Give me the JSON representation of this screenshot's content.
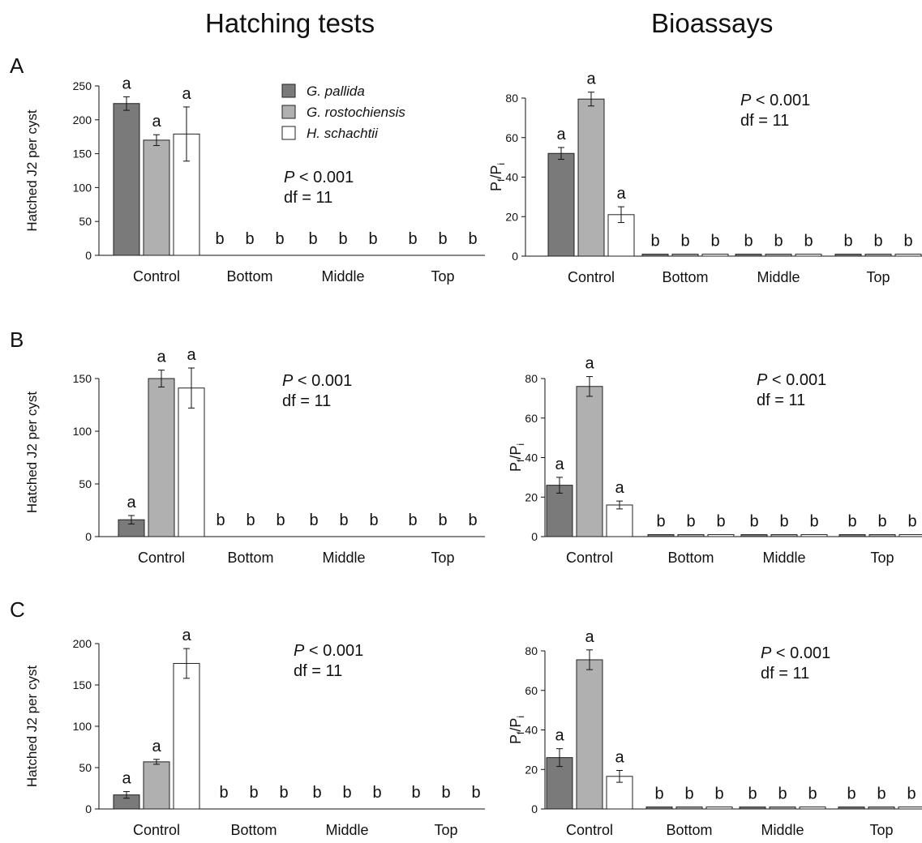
{
  "column_titles": [
    "Hatching tests",
    "Bioassays"
  ],
  "row_labels": [
    "A",
    "B",
    "C"
  ],
  "colors": {
    "G. pallida": "#7a7a7a",
    "G. rostochiensis": "#b0b0b0",
    "H. schachtii": "#ffffff",
    "stroke": "#222222"
  },
  "chart_data": [
    {
      "type": "bar",
      "panel": "A",
      "column": "Hatching tests",
      "ylabel": "Hatched J2 per cyst",
      "ylim": [
        0,
        250
      ],
      "yticks": [
        0,
        50,
        100,
        150,
        200,
        250
      ],
      "categories": [
        "Control",
        "Bottom",
        "Middle",
        "Top"
      ],
      "series": [
        {
          "name": "G. pallida",
          "values": [
            224,
            0,
            0,
            0
          ],
          "errors": [
            10,
            0,
            0,
            0
          ]
        },
        {
          "name": "G. rostochiensis",
          "values": [
            170,
            0,
            0,
            0
          ],
          "errors": [
            8,
            0,
            0,
            0
          ]
        },
        {
          "name": "H. schachtii",
          "values": [
            179,
            0,
            0,
            0
          ],
          "errors": [
            40,
            0,
            0,
            0
          ]
        }
      ],
      "letters": [
        [
          "a",
          "a",
          "a"
        ],
        [
          "b",
          "b",
          "b"
        ],
        [
          "b",
          "b",
          "b"
        ],
        [
          "b",
          "b",
          "b"
        ]
      ],
      "stats": {
        "p": "< 0.001",
        "df": "df = 11"
      },
      "legend": "top-center"
    },
    {
      "type": "bar",
      "panel": "A",
      "column": "Bioassays",
      "ylabel": "Pf/Pi",
      "ylim": [
        0,
        80
      ],
      "yticks": [
        0,
        20,
        40,
        60,
        80
      ],
      "categories": [
        "Control",
        "Bottom",
        "Middle",
        "Top"
      ],
      "series": [
        {
          "name": "G. pallida",
          "values": [
            52,
            1,
            1,
            1
          ],
          "errors": [
            3,
            0,
            0,
            0
          ]
        },
        {
          "name": "G. rostochiensis",
          "values": [
            79.5,
            1,
            1,
            1
          ],
          "errors": [
            3.5,
            0,
            0,
            0
          ]
        },
        {
          "name": "H. schachtii",
          "values": [
            21,
            1,
            1,
            1
          ],
          "errors": [
            4,
            0,
            0,
            0
          ]
        }
      ],
      "letters": [
        [
          "a",
          "a",
          "a"
        ],
        [
          "b",
          "b",
          "b"
        ],
        [
          "b",
          "b",
          "b"
        ],
        [
          "b",
          "b",
          "b"
        ]
      ],
      "stats": {
        "p": "< 0.001",
        "df": "df = 11"
      }
    },
    {
      "type": "bar",
      "panel": "B",
      "column": "Hatching tests",
      "ylabel": "Hatched J2 per cyst",
      "ylim": [
        0,
        160
      ],
      "yticks": [
        0,
        50,
        100,
        150
      ],
      "categories": [
        "Control",
        "Bottom",
        "Middle",
        "Top"
      ],
      "series": [
        {
          "name": "G. pallida",
          "values": [
            16,
            0,
            0,
            0
          ],
          "errors": [
            4,
            0,
            0,
            0
          ]
        },
        {
          "name": "G. rostochiensis",
          "values": [
            150,
            0,
            0,
            0
          ],
          "errors": [
            8,
            0,
            0,
            0
          ]
        },
        {
          "name": "H. schachtii",
          "values": [
            141,
            0,
            0,
            0
          ],
          "errors": [
            19,
            0,
            0,
            0
          ]
        }
      ],
      "letters": [
        [
          "a",
          "a",
          "a"
        ],
        [
          "b",
          "b",
          "b"
        ],
        [
          "b",
          "b",
          "b"
        ],
        [
          "b",
          "b",
          "b"
        ]
      ],
      "stats": {
        "p": "< 0.001",
        "df": "df = 11"
      }
    },
    {
      "type": "bar",
      "panel": "B",
      "column": "Bioassays",
      "ylabel": "Pf/Pi",
      "ylim": [
        0,
        80
      ],
      "yticks": [
        0,
        20,
        40,
        60,
        80
      ],
      "categories": [
        "Control",
        "Bottom",
        "Middle",
        "Top"
      ],
      "series": [
        {
          "name": "G. pallida",
          "values": [
            26,
            1,
            1,
            1
          ],
          "errors": [
            4,
            0,
            0,
            0
          ]
        },
        {
          "name": "G. rostochiensis",
          "values": [
            76,
            1,
            1,
            1
          ],
          "errors": [
            5,
            0,
            0,
            0
          ]
        },
        {
          "name": "H. schachtii",
          "values": [
            16,
            1,
            1,
            1
          ],
          "errors": [
            2,
            0,
            0,
            0
          ]
        }
      ],
      "letters": [
        [
          "a",
          "a",
          "a"
        ],
        [
          "b",
          "b",
          "b"
        ],
        [
          "b",
          "b",
          "b"
        ],
        [
          "b",
          "b",
          "b"
        ]
      ],
      "stats": {
        "p": "< 0.001",
        "df": "df = 11"
      }
    },
    {
      "type": "bar",
      "panel": "C",
      "column": "Hatching tests",
      "ylabel": "Hatched J2 per cyst",
      "ylim": [
        0,
        200
      ],
      "yticks": [
        0,
        50,
        100,
        150,
        200
      ],
      "categories": [
        "Control",
        "Bottom",
        "Middle",
        "Top"
      ],
      "series": [
        {
          "name": "G. pallida",
          "values": [
            17,
            0,
            0,
            0
          ],
          "errors": [
            4,
            0,
            0,
            0
          ]
        },
        {
          "name": "G. rostochiensis",
          "values": [
            57,
            0,
            0,
            0
          ],
          "errors": [
            3,
            0,
            0,
            0
          ]
        },
        {
          "name": "H. schachtii",
          "values": [
            176,
            0,
            0,
            0
          ],
          "errors": [
            18,
            0,
            0,
            0
          ]
        }
      ],
      "letters": [
        [
          "a",
          "a",
          "a"
        ],
        [
          "b",
          "b",
          "b"
        ],
        [
          "b",
          "b",
          "b"
        ],
        [
          "b",
          "b",
          "b"
        ]
      ],
      "stats": {
        "p": "< 0.001",
        "df": "df = 11"
      }
    },
    {
      "type": "bar",
      "panel": "C",
      "column": "Bioassays",
      "ylabel": "Pf/Pi",
      "ylim": [
        0,
        80
      ],
      "yticks": [
        0,
        20,
        40,
        60,
        80
      ],
      "categories": [
        "Control",
        "Bottom",
        "Middle",
        "Top"
      ],
      "series": [
        {
          "name": "G. pallida",
          "values": [
            26,
            1,
            1,
            1
          ],
          "errors": [
            4.5,
            0,
            0,
            0
          ]
        },
        {
          "name": "G. rostochiensis",
          "values": [
            75.5,
            1,
            1,
            1
          ],
          "errors": [
            5,
            0,
            0,
            0
          ]
        },
        {
          "name": "H. schachtii",
          "values": [
            16.5,
            1,
            1,
            1
          ],
          "errors": [
            3,
            0,
            0,
            0
          ]
        }
      ],
      "letters": [
        [
          "a",
          "a",
          "a"
        ],
        [
          "b",
          "b",
          "b"
        ],
        [
          "b",
          "b",
          "b"
        ],
        [
          "b",
          "b",
          "b"
        ]
      ],
      "stats": {
        "p": "< 0.001",
        "df": "df = 11"
      }
    }
  ]
}
